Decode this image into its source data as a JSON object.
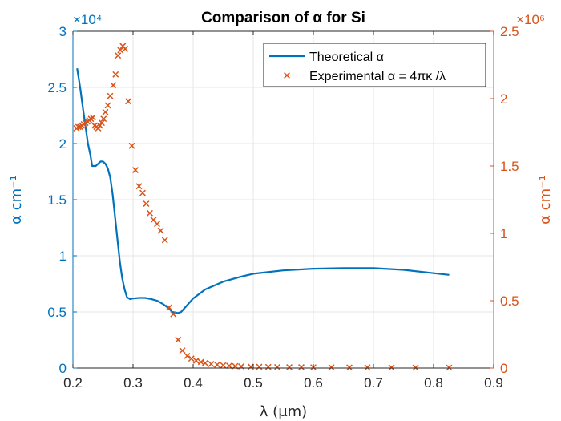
{
  "chart_data": {
    "type": "line",
    "title": "Comparison of α for Si",
    "xlabel": "λ (μm)",
    "ylabel_left": "α  cm⁻¹",
    "ylabel_right": "α  cm⁻¹",
    "xlim": [
      0.2,
      0.9
    ],
    "x_ticks": [
      0.2,
      0.3,
      0.4,
      0.5,
      0.6,
      0.7,
      0.8,
      0.9
    ],
    "x_tick_labels": [
      "0.2",
      "0.3",
      "0.4",
      "0.5",
      "0.6",
      "0.7",
      "0.8",
      "0.9"
    ],
    "ylim_left": [
      0,
      3
    ],
    "y_ticks_left": [
      0,
      0.5,
      1,
      1.5,
      2,
      2.5,
      3
    ],
    "y_tick_labels_left": [
      "0",
      "0.5",
      "1",
      "1.5",
      "2",
      "2.5",
      "3"
    ],
    "y_exponent_left": "×10⁴",
    "ylim_right": [
      0,
      2.5
    ],
    "y_ticks_right": [
      0,
      0.5,
      1,
      1.5,
      2,
      2.5
    ],
    "y_tick_labels_right": [
      "0",
      "0.5",
      "1",
      "1.5",
      "2",
      "2.5"
    ],
    "y_exponent_right": "×10⁶",
    "grid": true,
    "legend_position": "top-right",
    "colors": {
      "left": "#0072BD",
      "right": "#D95319",
      "axes": "#262626",
      "grid": "#e6e6e6"
    },
    "series": [
      {
        "name": "Theoretical α",
        "axis": "left",
        "style": "line",
        "x": [
          0.207,
          0.212,
          0.217,
          0.221,
          0.225,
          0.229,
          0.232,
          0.235,
          0.238,
          0.242,
          0.246,
          0.25,
          0.254,
          0.258,
          0.262,
          0.266,
          0.27,
          0.274,
          0.278,
          0.282,
          0.286,
          0.29,
          0.295,
          0.3,
          0.31,
          0.32,
          0.33,
          0.34,
          0.35,
          0.36,
          0.365,
          0.375,
          0.38,
          0.39,
          0.4,
          0.42,
          0.45,
          0.48,
          0.5,
          0.55,
          0.6,
          0.65,
          0.7,
          0.75,
          0.8,
          0.826
        ],
        "y": [
          2.67,
          2.5,
          2.3,
          2.15,
          2.0,
          1.9,
          1.8,
          1.8,
          1.8,
          1.82,
          1.84,
          1.84,
          1.82,
          1.78,
          1.7,
          1.55,
          1.35,
          1.15,
          0.95,
          0.8,
          0.7,
          0.63,
          0.615,
          0.62,
          0.625,
          0.625,
          0.615,
          0.6,
          0.57,
          0.53,
          0.5,
          0.49,
          0.5,
          0.56,
          0.62,
          0.7,
          0.77,
          0.815,
          0.84,
          0.87,
          0.885,
          0.89,
          0.89,
          0.875,
          0.845,
          0.83
        ]
      },
      {
        "name": "Experimental α = 4πκ /λ",
        "axis": "right",
        "style": "markers",
        "x": [
          0.206,
          0.209,
          0.212,
          0.215,
          0.218,
          0.221,
          0.224,
          0.227,
          0.23,
          0.233,
          0.236,
          0.239,
          0.242,
          0.245,
          0.248,
          0.251,
          0.254,
          0.258,
          0.262,
          0.267,
          0.271,
          0.275,
          0.279,
          0.283,
          0.287,
          0.292,
          0.298,
          0.304,
          0.31,
          0.316,
          0.322,
          0.328,
          0.334,
          0.34,
          0.346,
          0.353,
          0.36,
          0.367,
          0.375,
          0.382,
          0.39,
          0.397,
          0.405,
          0.413,
          0.42,
          0.43,
          0.44,
          0.45,
          0.46,
          0.47,
          0.48,
          0.496,
          0.51,
          0.525,
          0.54,
          0.56,
          0.58,
          0.6,
          0.63,
          0.66,
          0.69,
          0.73,
          0.77,
          0.826
        ],
        "y": [
          1.78,
          1.79,
          1.79,
          1.8,
          1.81,
          1.82,
          1.83,
          1.84,
          1.85,
          1.86,
          1.8,
          1.79,
          1.78,
          1.8,
          1.82,
          1.85,
          1.9,
          1.95,
          2.02,
          2.1,
          2.18,
          2.32,
          2.36,
          2.39,
          2.37,
          1.98,
          1.65,
          1.47,
          1.35,
          1.3,
          1.22,
          1.15,
          1.1,
          1.07,
          1.02,
          0.95,
          0.45,
          0.4,
          0.21,
          0.13,
          0.09,
          0.07,
          0.055,
          0.045,
          0.037,
          0.03,
          0.025,
          0.02,
          0.017,
          0.014,
          0.012,
          0.01,
          0.009,
          0.008,
          0.007,
          0.006,
          0.006,
          0.005,
          0.005,
          0.004,
          0.004,
          0.004,
          0.003,
          0.003
        ]
      }
    ]
  }
}
